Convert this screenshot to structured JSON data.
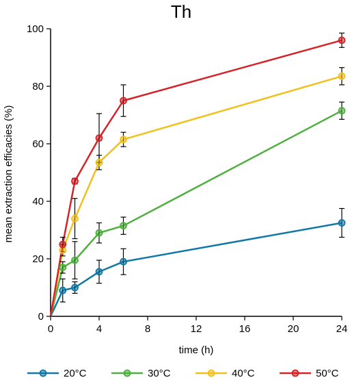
{
  "chart_data": {
    "type": "line",
    "title": "Th",
    "xlabel": "time (h)",
    "ylabel": "mean extraction efficacies (%)",
    "xlim": [
      0,
      24
    ],
    "ylim": [
      0,
      100
    ],
    "xticks": [
      0,
      4,
      8,
      12,
      16,
      20,
      24
    ],
    "yticks": [
      0,
      20,
      40,
      60,
      80,
      100
    ],
    "grid": false,
    "legend_position": "bottom",
    "series": [
      {
        "name": "20°C",
        "color": "#1177a6",
        "points": [
          {
            "x": 0,
            "y": 0
          },
          {
            "x": 1,
            "y": 9,
            "err": 4
          },
          {
            "x": 2,
            "y": 10,
            "err": 2
          },
          {
            "x": 4,
            "y": 15.5,
            "err": 4
          },
          {
            "x": 6,
            "y": 19,
            "err": 4.5
          },
          {
            "x": 24,
            "y": 32.5,
            "err": 5
          }
        ]
      },
      {
        "name": "30°C",
        "color": "#4daf3d",
        "points": [
          {
            "x": 0,
            "y": 0
          },
          {
            "x": 1,
            "y": 17,
            "err": 2
          },
          {
            "x": 2,
            "y": 19.5,
            "err": 6.5
          },
          {
            "x": 4,
            "y": 29,
            "err": 3.5
          },
          {
            "x": 6,
            "y": 31.5,
            "err": 3
          },
          {
            "x": 24,
            "y": 71.5,
            "err": 3
          }
        ]
      },
      {
        "name": "40°C",
        "color": "#f2c01e",
        "points": [
          {
            "x": 0,
            "y": 0
          },
          {
            "x": 1,
            "y": 23,
            "err": 2
          },
          {
            "x": 2,
            "y": 34,
            "err": 7
          },
          {
            "x": 4,
            "y": 53.5,
            "err": 2.5
          },
          {
            "x": 6,
            "y": 61.5,
            "err": 2.5
          },
          {
            "x": 24,
            "y": 83.5,
            "err": 3
          }
        ]
      },
      {
        "name": "50°C",
        "color": "#d4242a",
        "points": [
          {
            "x": 0,
            "y": 0
          },
          {
            "x": 1,
            "y": 25,
            "err": 2.5
          },
          {
            "x": 2,
            "y": 47,
            "err": 1
          },
          {
            "x": 4,
            "y": 62,
            "err": 8.5
          },
          {
            "x": 6,
            "y": 75,
            "err": 5.5
          },
          {
            "x": 24,
            "y": 96,
            "err": 2.5
          }
        ]
      }
    ]
  }
}
